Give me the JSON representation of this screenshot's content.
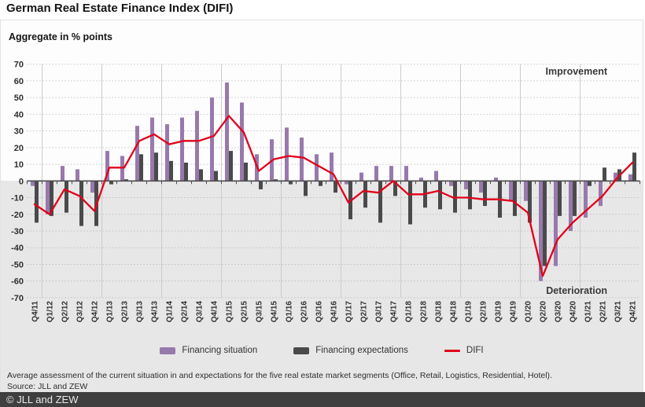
{
  "title": "German Real Estate Finance Index (DIFI)",
  "colors": {
    "situation": "#9879ac",
    "expectations": "#4a4a4c",
    "difi": "#e2001a",
    "below_zero_bg": "#e8e7e7",
    "gridline": "#ababab",
    "year_line": "#cccccc",
    "axis": "#4d4d4d",
    "footer_bar": "#3f3f3f"
  },
  "chart_data": {
    "type": "bar",
    "subtitle": "Aggregate in % points",
    "title": "German Real Estate Finance Index (DIFI)",
    "ylabel": "Aggregate in % points",
    "ylim": [
      -70,
      70
    ],
    "ytick_step": 10,
    "grid": "dotted horizontal every 10, solid vertical at year boundaries",
    "legend_position": "bottom",
    "annotations": {
      "improvement": "Improvement",
      "deterioration": "Deterioration"
    },
    "categories": [
      "Q4/11",
      "Q1/12",
      "Q2/12",
      "Q3/12",
      "Q4/12",
      "Q1/13",
      "Q2/13",
      "Q3/13",
      "Q4/13",
      "Q1/14",
      "Q2/14",
      "Q3/14",
      "Q4/14",
      "Q1/15",
      "Q2/15",
      "Q3/15",
      "Q4/15",
      "Q1/16",
      "Q2/16",
      "Q3/16",
      "Q4/16",
      "Q1/17",
      "Q2/17",
      "Q3/17",
      "Q4/17",
      "Q1/18",
      "Q2/18",
      "Q3/18",
      "Q4/18",
      "Q1/19",
      "Q2/19",
      "Q3/19",
      "Q4/19",
      "Q1/20",
      "Q2/20",
      "Q3/20",
      "Q4/20",
      "Q1/21",
      "Q2/21",
      "Q3/21",
      "Q4/21"
    ],
    "series": [
      {
        "name": "Financing situation",
        "type": "bar",
        "color_key": "situation",
        "values": [
          -3,
          -20,
          9,
          7,
          -7,
          18,
          15,
          33,
          38,
          34,
          38,
          42,
          50,
          59,
          47,
          16,
          25,
          32,
          26,
          16,
          17,
          -2,
          5,
          9,
          9,
          9,
          2,
          6,
          -3,
          -5,
          -7,
          2,
          -12,
          -12,
          -60,
          -51,
          -30,
          -22,
          -15,
          5,
          4
        ]
      },
      {
        "name": "Financing expectations",
        "type": "bar",
        "color_key": "expectations",
        "values": [
          -25,
          -21,
          -19,
          -27,
          -27,
          -2,
          1,
          16,
          17,
          12,
          11,
          7,
          6,
          18,
          11,
          -5,
          1,
          -2,
          -9,
          -3,
          -7,
          -23,
          -16,
          -25,
          -9,
          -26,
          -16,
          -17,
          -19,
          -17,
          -15,
          -22,
          -21,
          -25,
          -51,
          -21,
          -21,
          -3,
          8,
          7,
          17
        ]
      },
      {
        "name": "DIFI",
        "type": "line",
        "color_key": "difi",
        "values": [
          -14,
          -20,
          -5,
          -9,
          -18,
          8,
          8,
          24,
          28,
          22,
          24,
          24,
          27,
          39,
          29,
          6,
          13,
          15,
          14,
          9,
          4,
          -13,
          -6,
          -7,
          0,
          -8,
          -8,
          -6,
          -10,
          -10,
          -11,
          -11,
          -12,
          -19,
          -57,
          -35,
          -25,
          -17,
          -9,
          2,
          11
        ]
      }
    ]
  },
  "footer": {
    "note": "Average assessment of the current situation in and expectations for the five real estate market segments (Office, Retail, Logistics, Residential, Hotel).",
    "source": "Source: JLL and ZEW",
    "copyright": "© JLL and ZEW"
  }
}
